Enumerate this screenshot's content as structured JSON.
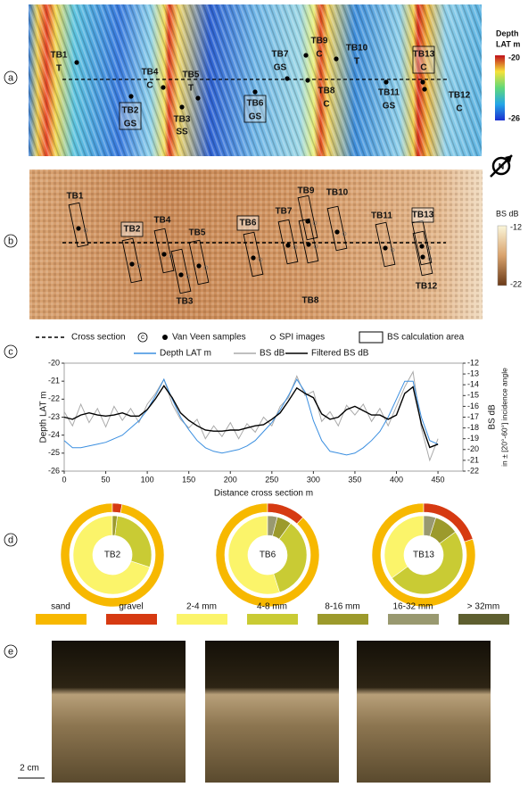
{
  "panel_labels": [
    "a",
    "b",
    "c",
    "d",
    "e"
  ],
  "map_a": {
    "colorbar_title": [
      "Depth",
      "LAT m"
    ],
    "colorbar_ticks": [
      -20,
      -26
    ],
    "stations": [
      {
        "id": "TB1",
        "class": "T"
      },
      {
        "id": "TB4",
        "class": "C"
      },
      {
        "id": "TB5",
        "class": "T"
      },
      {
        "id": "TB2",
        "class": "GS"
      },
      {
        "id": "TB3",
        "class": "SS"
      },
      {
        "id": "TB6",
        "class": "GS"
      },
      {
        "id": "TB7",
        "class": "GS"
      },
      {
        "id": "TB9",
        "class": "C"
      },
      {
        "id": "TB10",
        "class": "T"
      },
      {
        "id": "TB8",
        "class": "C"
      },
      {
        "id": "TB11",
        "class": "GS"
      },
      {
        "id": "TB13",
        "class": "C"
      },
      {
        "id": "TB12",
        "class": "C"
      }
    ]
  },
  "map_b": {
    "colorbar_title": "BS dB",
    "colorbar_ticks": [
      -12,
      -22
    ],
    "stations": [
      "TB1",
      "TB2",
      "TB4",
      "TB5",
      "TB3",
      "TB6",
      "TB7",
      "TB9",
      "TB8",
      "TB10",
      "TB11",
      "TB13",
      "TB12"
    ]
  },
  "map_legend": {
    "items": [
      "Cross section",
      "Van Veen samples",
      "SPI images",
      "BS calculation area"
    ],
    "cross_ref": "c"
  },
  "chart_data": [
    {
      "type": "line",
      "x_label": "Distance cross section m",
      "y_label": "Depth LAT m",
      "y2_label": "BS dB",
      "y2_note": "in ± [20°-60°] incidence angle",
      "x": [
        0,
        10,
        20,
        30,
        40,
        50,
        60,
        70,
        80,
        90,
        100,
        110,
        120,
        130,
        140,
        150,
        160,
        170,
        180,
        190,
        200,
        210,
        220,
        230,
        240,
        250,
        260,
        270,
        280,
        290,
        300,
        310,
        320,
        330,
        340,
        350,
        360,
        370,
        380,
        390,
        400,
        410,
        420,
        430,
        440,
        450
      ],
      "series": [
        {
          "name": "Depth LAT m",
          "color": "#3b8fe0",
          "values": [
            -24.3,
            -24.7,
            -24.7,
            -24.6,
            -24.5,
            -24.4,
            -24.2,
            -24.0,
            -23.6,
            -23.2,
            -22.6,
            -21.8,
            -20.9,
            -22.0,
            -23.0,
            -23.7,
            -24.3,
            -24.7,
            -24.9,
            -25.0,
            -24.9,
            -24.8,
            -24.6,
            -24.3,
            -23.8,
            -23.3,
            -22.6,
            -21.8,
            -20.9,
            -21.6,
            -23.2,
            -24.3,
            -24.9,
            -25.0,
            -25.1,
            -25.0,
            -24.7,
            -24.3,
            -23.8,
            -23.0,
            -22.0,
            -21.0,
            -21.0,
            -23.0,
            -24.3,
            -24.5
          ]
        },
        {
          "name": "BS dB",
          "color": "#aaaaaa",
          "axis": "y2",
          "values": [
            -16.5,
            -17.8,
            -15.8,
            -17.5,
            -16.2,
            -17.9,
            -16.0,
            -17.3,
            -16.2,
            -17.5,
            -15.8,
            -14.8,
            -13.5,
            -15.8,
            -17.2,
            -18.0,
            -17.2,
            -19.0,
            -17.8,
            -18.8,
            -17.5,
            -19.0,
            -17.6,
            -18.4,
            -17.0,
            -17.8,
            -16.0,
            -15.2,
            -13.2,
            -15.0,
            -14.6,
            -17.4,
            -16.5,
            -17.8,
            -15.9,
            -16.8,
            -15.8,
            -17.4,
            -16.2,
            -17.8,
            -16.0,
            -14.2,
            -12.8,
            -18.0,
            -21.0,
            -19.0
          ]
        },
        {
          "name": "Filtered BS dB",
          "color": "#000000",
          "axis": "y2",
          "values": [
            -17.0,
            -17.2,
            -16.8,
            -16.6,
            -16.8,
            -16.9,
            -16.8,
            -16.6,
            -16.9,
            -16.9,
            -16.3,
            -15.3,
            -14.1,
            -15.2,
            -16.6,
            -17.3,
            -17.8,
            -18.2,
            -18.3,
            -18.3,
            -18.2,
            -18.2,
            -18.0,
            -17.8,
            -17.7,
            -17.2,
            -16.6,
            -15.5,
            -14.3,
            -14.8,
            -15.2,
            -16.7,
            -17.2,
            -17.0,
            -16.3,
            -16.0,
            -16.4,
            -16.8,
            -16.8,
            -17.2,
            -16.8,
            -14.8,
            -14.2,
            -17.6,
            -19.8,
            -19.5
          ]
        }
      ],
      "xlim": [
        0,
        480
      ],
      "xticks": [
        0,
        50,
        100,
        150,
        200,
        250,
        300,
        350,
        400,
        450
      ],
      "ylim": [
        -26,
        -20
      ],
      "yticks": [
        -20,
        -21,
        -22,
        -23,
        -24,
        -25,
        -26
      ],
      "y2lim": [
        -22,
        -12
      ],
      "y2ticks": [
        -12,
        -13,
        -14,
        -15,
        -16,
        -17,
        -18,
        -19,
        -20,
        -21,
        -22
      ]
    },
    {
      "type": "donut",
      "label": "TB2",
      "outer": {
        "values": [
          97,
          3
        ],
        "colors": [
          "#f7b800",
          "#d63a12"
        ]
      },
      "inner": {
        "values": [
          70,
          28,
          2
        ],
        "colors": [
          "#fbf46a",
          "#c9cb34",
          "#9c9a2c"
        ]
      }
    },
    {
      "type": "donut",
      "label": "TB6",
      "outer": {
        "values": [
          88,
          12
        ],
        "colors": [
          "#f7b800",
          "#d63a12"
        ]
      },
      "inner": {
        "values": [
          55,
          35,
          6,
          4
        ],
        "colors": [
          "#fbf46a",
          "#c9cb34",
          "#9c9a2c",
          "#999970"
        ]
      }
    },
    {
      "type": "donut",
      "label": "TB13",
      "outer": {
        "values": [
          80,
          20
        ],
        "colors": [
          "#f7b800",
          "#d63a12"
        ]
      },
      "inner": {
        "values": [
          35,
          50,
          10,
          5
        ],
        "colors": [
          "#fbf46a",
          "#c9cb34",
          "#9c9a2c",
          "#999970"
        ]
      }
    }
  ],
  "fraction_legend": [
    {
      "label": "sand",
      "color": "#f7b800"
    },
    {
      "label": "gravel",
      "color": "#d63a12"
    },
    {
      "label": "2-4 mm",
      "color": "#fbf46a"
    },
    {
      "label": "4-8 mm",
      "color": "#c9cb34"
    },
    {
      "label": "8-16 mm",
      "color": "#9c9a2c"
    },
    {
      "label": "16-32 mm",
      "color": "#999970"
    },
    {
      "label": "> 32mm",
      "color": "#5e5f30"
    }
  ],
  "scale_bar": "2 cm"
}
